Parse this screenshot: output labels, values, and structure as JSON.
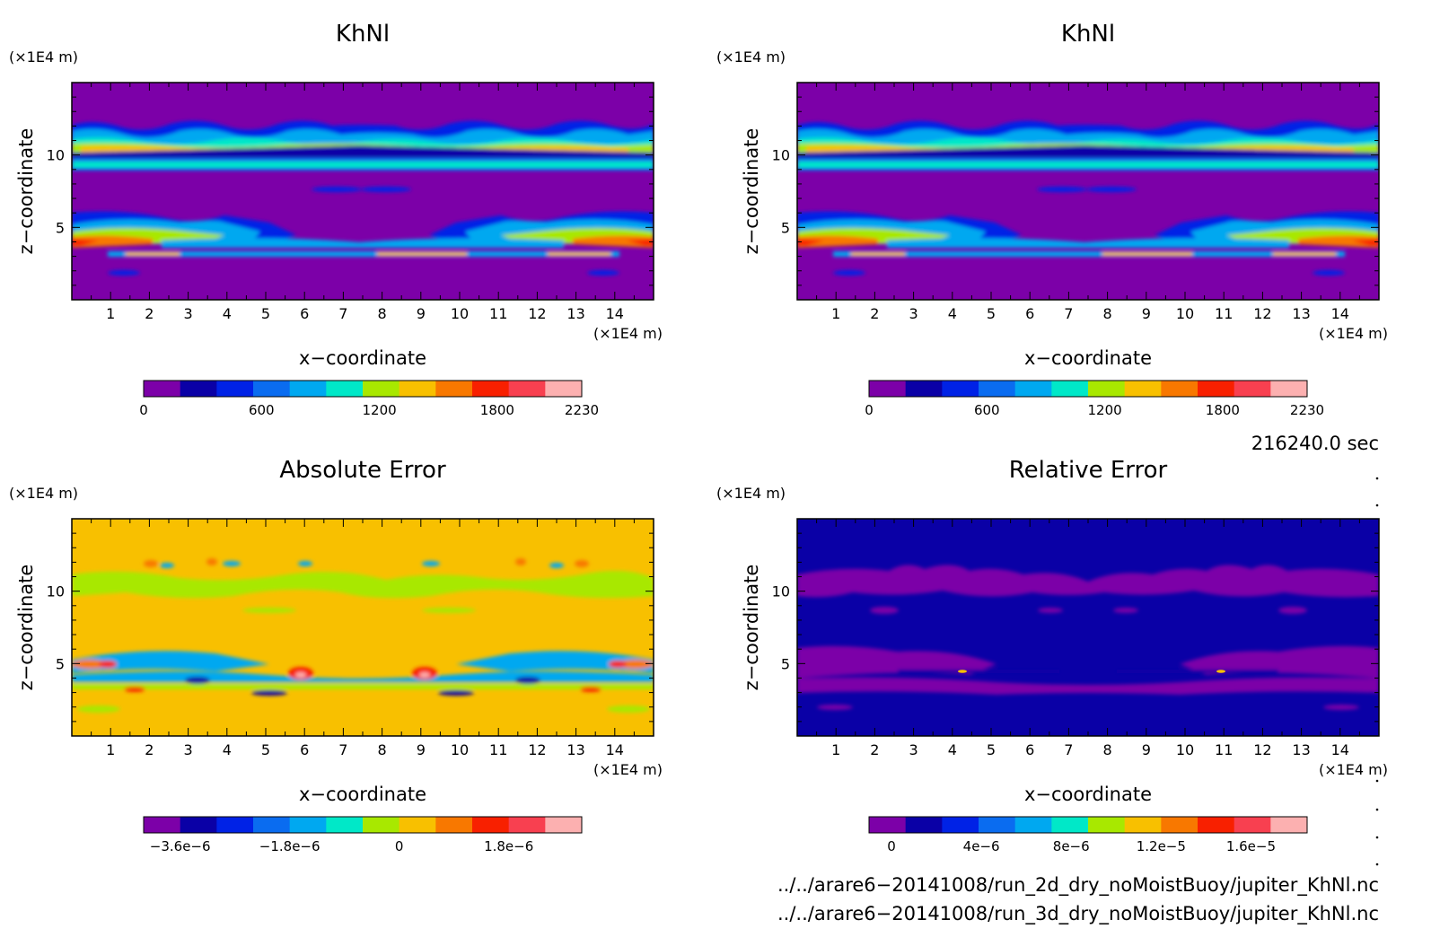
{
  "chart_data": [
    {
      "type": "heatmap",
      "title": "KhNl",
      "xlabel": "x−coordinate",
      "ylabel": "z−coordinate",
      "x_unit": "(×1E4 m)",
      "y_unit": "(×1E4 m)",
      "x_ticks": [
        "1",
        "2",
        "3",
        "4",
        "5",
        "6",
        "7",
        "8",
        "9",
        "10",
        "11",
        "12",
        "13",
        "14"
      ],
      "y_ticks": [
        "5",
        "10"
      ],
      "xlim": [
        0,
        15
      ],
      "ylim": [
        0,
        15
      ],
      "colorbar": {
        "min": 0,
        "max": 2230,
        "levels": 11,
        "tick_labels": [
          "0",
          "600",
          "1200",
          "1800",
          "2230"
        ],
        "tick_values": [
          0,
          600,
          1200,
          1800,
          2230
        ],
        "colors": [
          "#7c00a8",
          "#0a00a6",
          "#0022e6",
          "#0a6cf0",
          "#00a8f0",
          "#00e8c8",
          "#a8e800",
          "#f8c000",
          "#f87800",
          "#f82000",
          "#f84050",
          "#fcb0b0"
        ]
      }
    },
    {
      "type": "heatmap",
      "title": "KhNl",
      "xlabel": "x−coordinate",
      "ylabel": "z−coordinate",
      "x_unit": "(×1E4 m)",
      "y_unit": "(×1E4 m)",
      "x_ticks": [
        "1",
        "2",
        "3",
        "4",
        "5",
        "6",
        "7",
        "8",
        "9",
        "10",
        "11",
        "12",
        "13",
        "14"
      ],
      "y_ticks": [
        "5",
        "10"
      ],
      "xlim": [
        0,
        15
      ],
      "ylim": [
        0,
        15
      ],
      "colorbar": {
        "min": 0,
        "max": 2230,
        "levels": 11,
        "tick_labels": [
          "0",
          "600",
          "1200",
          "1800",
          "2230"
        ],
        "tick_values": [
          0,
          600,
          1200,
          1800,
          2230
        ],
        "colors": [
          "#7c00a8",
          "#0a00a6",
          "#0022e6",
          "#0a6cf0",
          "#00a8f0",
          "#00e8c8",
          "#a8e800",
          "#f8c000",
          "#f87800",
          "#f82000",
          "#f84050",
          "#fcb0b0"
        ]
      }
    },
    {
      "type": "heatmap",
      "title": "Absolute Error",
      "xlabel": "x−coordinate",
      "ylabel": "z−coordinate",
      "x_unit": "(×1E4 m)",
      "y_unit": "(×1E4 m)",
      "x_ticks": [
        "1",
        "2",
        "3",
        "4",
        "5",
        "6",
        "7",
        "8",
        "9",
        "10",
        "11",
        "12",
        "13",
        "14"
      ],
      "y_ticks": [
        "5",
        "10"
      ],
      "xlim": [
        0,
        15
      ],
      "ylim": [
        0,
        15
      ],
      "colorbar": {
        "min": -4.2e-06,
        "max": 3e-06,
        "levels": 12,
        "tick_labels": [
          "−3.6e−6",
          "−1.8e−6",
          "0",
          "1.8e−6"
        ],
        "tick_values": [
          -3.6e-06,
          -1.8e-06,
          0,
          1.8e-06
        ],
        "colors": [
          "#7c00a8",
          "#0a00a6",
          "#0022e6",
          "#0a6cf0",
          "#00a8f0",
          "#00e8c8",
          "#a8e800",
          "#f8c000",
          "#f87800",
          "#f82000",
          "#f84050",
          "#fcb0b0"
        ]
      }
    },
    {
      "type": "heatmap",
      "title": "Relative Error",
      "xlabel": "x−coordinate",
      "ylabel": "z−coordinate",
      "x_unit": "(×1E4 m)",
      "y_unit": "(×1E4 m)",
      "x_ticks": [
        "1",
        "2",
        "3",
        "4",
        "5",
        "6",
        "7",
        "8",
        "9",
        "10",
        "11",
        "12",
        "13",
        "14"
      ],
      "y_ticks": [
        "5",
        "10"
      ],
      "xlim": [
        0,
        15
      ],
      "ylim": [
        0,
        15
      ],
      "colorbar": {
        "min": -1e-06,
        "max": 1.85e-05,
        "levels": 11,
        "tick_labels": [
          "0",
          "4e−6",
          "8e−6",
          "1.2e−5",
          "1.6e−5"
        ],
        "tick_values": [
          0,
          4e-06,
          8e-06,
          1.2e-05,
          1.6e-05
        ],
        "colors": [
          "#7c00a8",
          "#0a00a6",
          "#0022e6",
          "#0a6cf0",
          "#00a8f0",
          "#00e8c8",
          "#a8e800",
          "#f8c000",
          "#f87800",
          "#f82000",
          "#f84050",
          "#fcb0b0"
        ]
      }
    }
  ],
  "info": {
    "time": "216240.0 sec",
    "file1": "../../arare6−20141008/run_2d_dry_noMoistBuoy/jupiter_KhNl.nc",
    "file2": "../../arare6−20141008/run_3d_dry_noMoistBuoy/jupiter_KhNl.nc"
  }
}
